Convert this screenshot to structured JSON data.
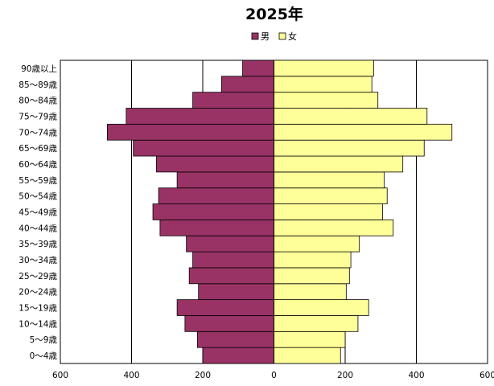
{
  "chart_data": {
    "type": "bar",
    "orientation": "horizontal",
    "layout": "population-pyramid",
    "title": "2025年",
    "categories": [
      "0～4歳",
      "5～9歳",
      "10～14歳",
      "15～19歳",
      "20～24歳",
      "25～29歳",
      "30～34歳",
      "35～39歳",
      "40～44歳",
      "45～49歳",
      "50～54歳",
      "55～59歳",
      "60～64歳",
      "65～69歳",
      "70～74歳",
      "75～79歳",
      "80～84歳",
      "85～89歳",
      "90歳以上"
    ],
    "series": [
      {
        "name": "男",
        "color": "#993366",
        "side": "left",
        "values": [
          200,
          215,
          250,
          272,
          212,
          238,
          228,
          246,
          320,
          340,
          324,
          272,
          330,
          395,
          468,
          415,
          228,
          147,
          88
        ]
      },
      {
        "name": "女",
        "color": "#ffff99",
        "side": "right",
        "values": [
          187,
          200,
          236,
          266,
          203,
          212,
          216,
          240,
          335,
          305,
          318,
          310,
          362,
          422,
          500,
          430,
          292,
          275,
          280
        ]
      }
    ],
    "xlim": [
      -600,
      600
    ],
    "x_ticks": [
      -600,
      -400,
      -200,
      0,
      200,
      400,
      600
    ],
    "x_tick_labels": [
      "600",
      "400",
      "200",
      "0",
      "200",
      "400",
      "600"
    ],
    "grid": "vertical",
    "legend_position": "top-center"
  }
}
